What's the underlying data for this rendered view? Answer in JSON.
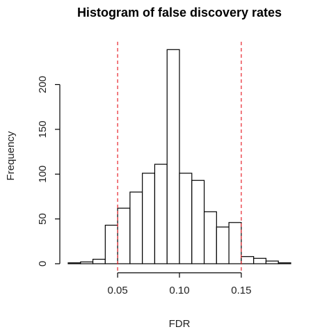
{
  "chart_data": {
    "type": "histogram",
    "title": "Histogram of false discovery rates",
    "xlabel": "FDR",
    "ylabel": "Frequency",
    "bin_width": 0.01,
    "bins": [
      {
        "start": 0.01,
        "end": 0.02,
        "count": 1
      },
      {
        "start": 0.02,
        "end": 0.03,
        "count": 2
      },
      {
        "start": 0.03,
        "end": 0.04,
        "count": 5
      },
      {
        "start": 0.04,
        "end": 0.05,
        "count": 43
      },
      {
        "start": 0.05,
        "end": 0.06,
        "count": 62
      },
      {
        "start": 0.06,
        "end": 0.07,
        "count": 80
      },
      {
        "start": 0.07,
        "end": 0.08,
        "count": 101
      },
      {
        "start": 0.08,
        "end": 0.09,
        "count": 111
      },
      {
        "start": 0.09,
        "end": 0.1,
        "count": 239
      },
      {
        "start": 0.1,
        "end": 0.11,
        "count": 101
      },
      {
        "start": 0.11,
        "end": 0.12,
        "count": 93
      },
      {
        "start": 0.12,
        "end": 0.13,
        "count": 58
      },
      {
        "start": 0.13,
        "end": 0.14,
        "count": 41
      },
      {
        "start": 0.14,
        "end": 0.15,
        "count": 46
      },
      {
        "start": 0.15,
        "end": 0.16,
        "count": 8
      },
      {
        "start": 0.16,
        "end": 0.17,
        "count": 6
      },
      {
        "start": 0.17,
        "end": 0.18,
        "count": 3
      },
      {
        "start": 0.18,
        "end": 0.19,
        "count": 1
      }
    ],
    "xlim": [
      0.01,
      0.19
    ],
    "ylim": [
      0,
      240
    ],
    "x_ticks": [
      0.05,
      0.1,
      0.15
    ],
    "x_tick_labels": [
      "0.05",
      "0.10",
      "0.15"
    ],
    "y_ticks": [
      0,
      50,
      100,
      150,
      200
    ],
    "y_tick_labels": [
      "0",
      "50",
      "100",
      "150",
      "200"
    ],
    "reference_lines": [
      {
        "x": 0.05,
        "color": "#e8222a",
        "style": "dashed"
      },
      {
        "x": 0.15,
        "color": "#e8222a",
        "style": "dashed"
      }
    ],
    "grid": false,
    "legend": "none",
    "bar_fill": "#ffffff",
    "bar_stroke": "#000000"
  }
}
